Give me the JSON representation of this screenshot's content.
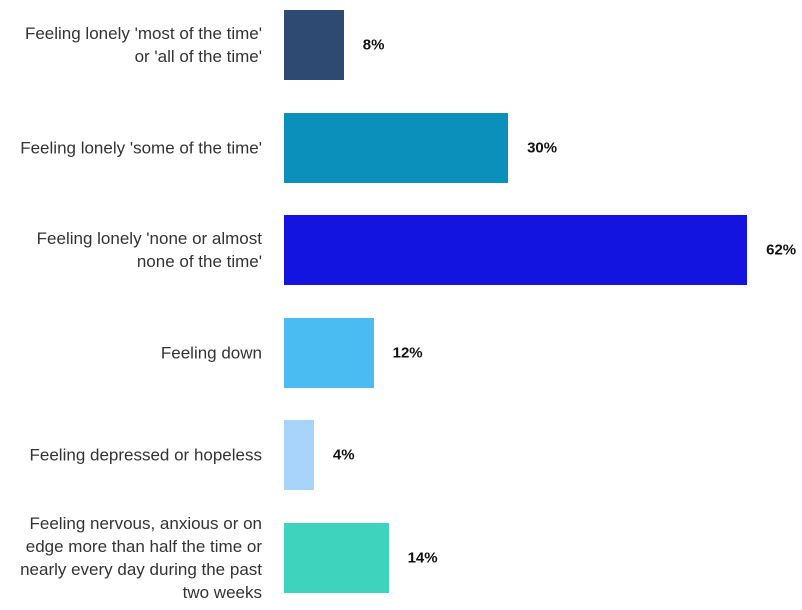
{
  "chart_data": {
    "type": "bar",
    "orientation": "horizontal",
    "categories": [
      "Feeling lonely 'most of the time' or 'all of the time'",
      "Feeling lonely 'some of the time'",
      "Feeling lonely 'none or almost none of the time'",
      "Feeling down",
      "Feeling depressed or hopeless",
      "Feeling nervous, anxious or on edge more than half the time or nearly every day during the past two weeks"
    ],
    "values": [
      8,
      30,
      62,
      12,
      4,
      14
    ],
    "value_labels": [
      "8%",
      "30%",
      "62%",
      "12%",
      "4%",
      "14%"
    ],
    "colors": [
      "#2e4a73",
      "#0b8fbb",
      "#1414e0",
      "#4bbcf2",
      "#a8d4fb",
      "#3dd3bd"
    ]
  }
}
